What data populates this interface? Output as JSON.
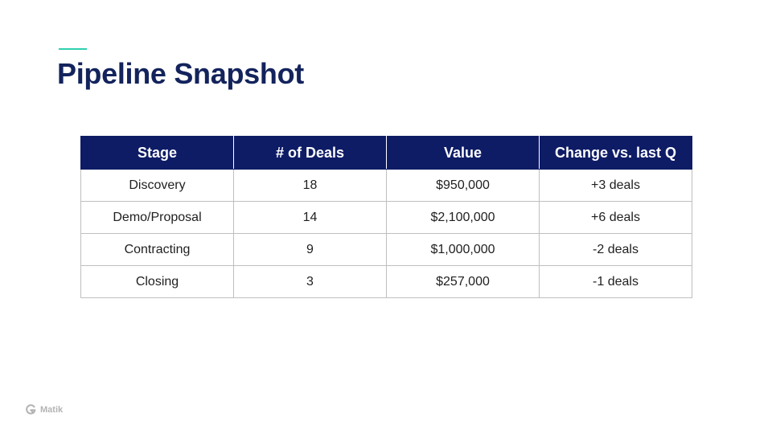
{
  "slide": {
    "title": "Pipeline Snapshot",
    "accent_color": "#2fd0b0",
    "title_color": "#13235c"
  },
  "table": {
    "header_color": "#0e1c66",
    "headers": [
      "Stage",
      "# of Deals",
      "Value",
      "Change vs. last Q"
    ],
    "rows": [
      [
        "Discovery",
        "18",
        "$950,000",
        "+3 deals"
      ],
      [
        "Demo/Proposal",
        "14",
        "$2,100,000",
        "+6 deals"
      ],
      [
        "Contracting",
        "9",
        "$1,000,000",
        "-2 deals"
      ],
      [
        "Closing",
        "3",
        "$257,000",
        "-1 deals"
      ]
    ]
  },
  "footer": {
    "logo_text": "Matik",
    "logo_icon": "matik-logo-icon"
  }
}
